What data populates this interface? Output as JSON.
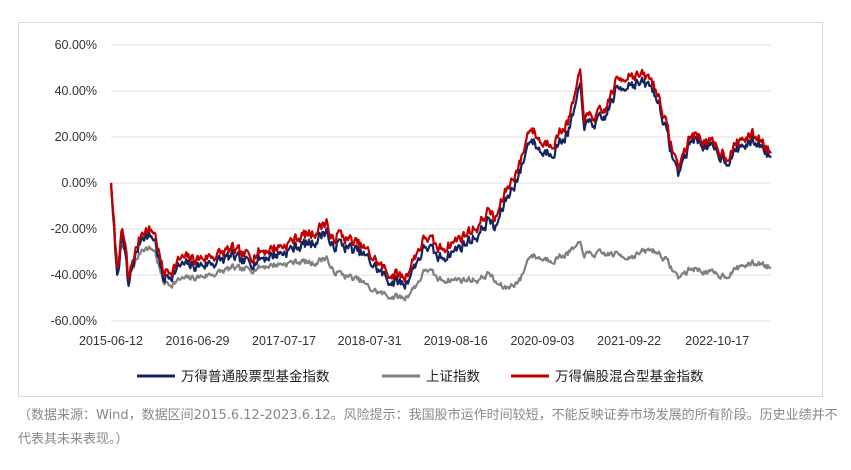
{
  "chart_data": {
    "type": "line",
    "title": "",
    "xlabel": "",
    "ylabel": "",
    "ylim": [
      -0.6,
      0.6
    ],
    "y_ticks": [
      0.6,
      0.4,
      0.2,
      0.0,
      -0.2,
      -0.4,
      -0.6
    ],
    "y_tick_labels": [
      "60.00%",
      "40.00%",
      "20.00%",
      "0.00%",
      "-20.00%",
      "-40.00%",
      "-60.00%"
    ],
    "x_range": [
      "2015-06-12",
      "2023-06-12"
    ],
    "x_tick_labels": [
      "2015-06-12",
      "2016-06-29",
      "2017-07-17",
      "2018-07-31",
      "2019-08-16",
      "2020-09-03",
      "2021-09-22",
      "2022-10-17"
    ],
    "grid": "horizontal",
    "legend_position": "bottom",
    "x": [
      "2015-06-12",
      "2015-06-26",
      "2015-07-08",
      "2015-07-31",
      "2015-08-18",
      "2015-08-26",
      "2015-09-15",
      "2015-10-30",
      "2015-12-22",
      "2016-01-28",
      "2016-02-29",
      "2016-04-15",
      "2016-06-29",
      "2016-09-30",
      "2016-11-30",
      "2017-01-16",
      "2017-04-28",
      "2017-07-17",
      "2017-09-29",
      "2017-11-22",
      "2018-01-24",
      "2018-02-09",
      "2018-03-12",
      "2018-06-29",
      "2018-07-31",
      "2018-10-18",
      "2019-01-03",
      "2019-02-25",
      "2019-04-08",
      "2019-05-31",
      "2019-08-16",
      "2019-11-29",
      "2020-01-14",
      "2020-02-03",
      "2020-03-23",
      "2020-05-29",
      "2020-07-09",
      "2020-09-03",
      "2020-10-30",
      "2020-12-31",
      "2021-02-18",
      "2021-03-09",
      "2021-05-31",
      "2021-07-27",
      "2021-09-22",
      "2021-12-31",
      "2022-02-10",
      "2022-03-15",
      "2022-04-26",
      "2022-06-30",
      "2022-10-17",
      "2022-11-30",
      "2023-01-31",
      "2023-03-31",
      "2023-05-05",
      "2023-06-12"
    ],
    "series": [
      {
        "name": "万得普通股票型基金指数",
        "color": "#13245f",
        "values": [
          0.0,
          -0.21,
          -0.41,
          -0.24,
          -0.33,
          -0.47,
          -0.36,
          -0.22,
          -0.24,
          -0.42,
          -0.4,
          -0.36,
          -0.36,
          -0.34,
          -0.32,
          -0.35,
          -0.32,
          -0.3,
          -0.27,
          -0.26,
          -0.2,
          -0.29,
          -0.26,
          -0.31,
          -0.34,
          -0.42,
          -0.44,
          -0.34,
          -0.27,
          -0.33,
          -0.29,
          -0.22,
          -0.15,
          -0.21,
          -0.08,
          0.05,
          0.2,
          0.13,
          0.15,
          0.23,
          0.41,
          0.25,
          0.27,
          0.4,
          0.44,
          0.42,
          0.32,
          0.18,
          0.04,
          0.2,
          0.13,
          0.1,
          0.16,
          0.18,
          0.16,
          0.11
        ]
      },
      {
        "name": "上证指数",
        "color": "#808080",
        "values": [
          0.0,
          -0.22,
          -0.33,
          -0.28,
          -0.3,
          -0.43,
          -0.37,
          -0.28,
          -0.29,
          -0.43,
          -0.44,
          -0.42,
          -0.41,
          -0.39,
          -0.37,
          -0.38,
          -0.36,
          -0.35,
          -0.34,
          -0.35,
          -0.32,
          -0.38,
          -0.39,
          -0.43,
          -0.46,
          -0.49,
          -0.5,
          -0.44,
          -0.37,
          -0.42,
          -0.42,
          -0.42,
          -0.39,
          -0.43,
          -0.46,
          -0.42,
          -0.31,
          -0.33,
          -0.33,
          -0.3,
          -0.27,
          -0.31,
          -0.31,
          -0.31,
          -0.32,
          -0.29,
          -0.31,
          -0.35,
          -0.41,
          -0.37,
          -0.4,
          -0.4,
          -0.36,
          -0.35,
          -0.35,
          -0.37
        ]
      },
      {
        "name": "万得偏股混合型基金指数",
        "color": "#c00000",
        "values": [
          0.0,
          -0.19,
          -0.38,
          -0.21,
          -0.29,
          -0.44,
          -0.34,
          -0.2,
          -0.21,
          -0.39,
          -0.38,
          -0.33,
          -0.33,
          -0.31,
          -0.29,
          -0.32,
          -0.29,
          -0.27,
          -0.23,
          -0.22,
          -0.16,
          -0.26,
          -0.22,
          -0.28,
          -0.31,
          -0.39,
          -0.41,
          -0.3,
          -0.23,
          -0.29,
          -0.25,
          -0.18,
          -0.11,
          -0.17,
          -0.04,
          0.09,
          0.25,
          0.17,
          0.19,
          0.28,
          0.47,
          0.28,
          0.3,
          0.44,
          0.48,
          0.45,
          0.35,
          0.21,
          0.07,
          0.22,
          0.15,
          0.12,
          0.19,
          0.21,
          0.18,
          0.13
        ]
      }
    ]
  },
  "source_note": "（数据来源：Wind，数据区间2015.6.12-2023.6.12。风险提示：我国股市运作时间较短，不能反映证券市场发展的所有阶段。历史业绩并不代表其未来表现。）"
}
